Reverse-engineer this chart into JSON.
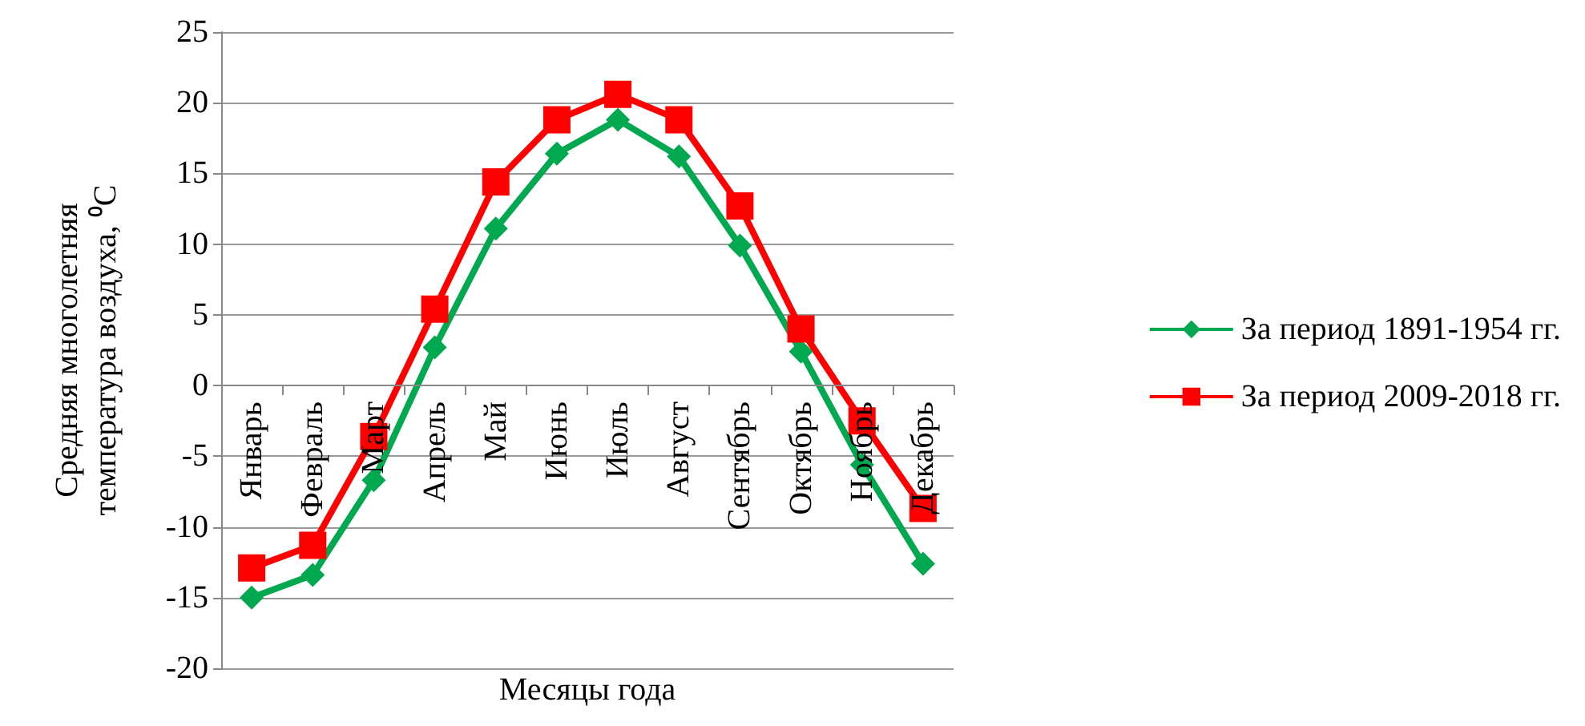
{
  "chart_data": {
    "type": "line",
    "xlabel": "Месяцы года",
    "ylabel": "Средняя многолетняя температура воздуха, ⁰C",
    "categories": [
      "Январь",
      "Февраль",
      "Март",
      "Апрель",
      "Май",
      "Июнь",
      "Июль",
      "Август",
      "Сентябрь",
      "Октябрь",
      "Ноябрь",
      "Декабрь"
    ],
    "series": [
      {
        "name": "За период 1891-1954 гг.",
        "color": "#00a84f",
        "marker": "diamond",
        "values": [
          -15,
          -13.4,
          -6.7,
          2.7,
          11.1,
          16.4,
          18.8,
          16.2,
          9.9,
          2.4,
          -5.6,
          -12.6
        ]
      },
      {
        "name": "За период 2009-2018 гг.",
        "color": "#ff0000",
        "marker": "square",
        "values": [
          -12.9,
          -11.3,
          -3.6,
          5.4,
          14.4,
          18.8,
          20.6,
          18.8,
          12.7,
          4.0,
          -2.5,
          -8.7
        ]
      }
    ],
    "ylim": [
      -20,
      25
    ],
    "yticks": [
      -20,
      -15,
      -10,
      -5,
      0,
      5,
      10,
      15,
      20,
      25
    ],
    "grid": "y",
    "legend": "right",
    "line_style": "solid"
  }
}
